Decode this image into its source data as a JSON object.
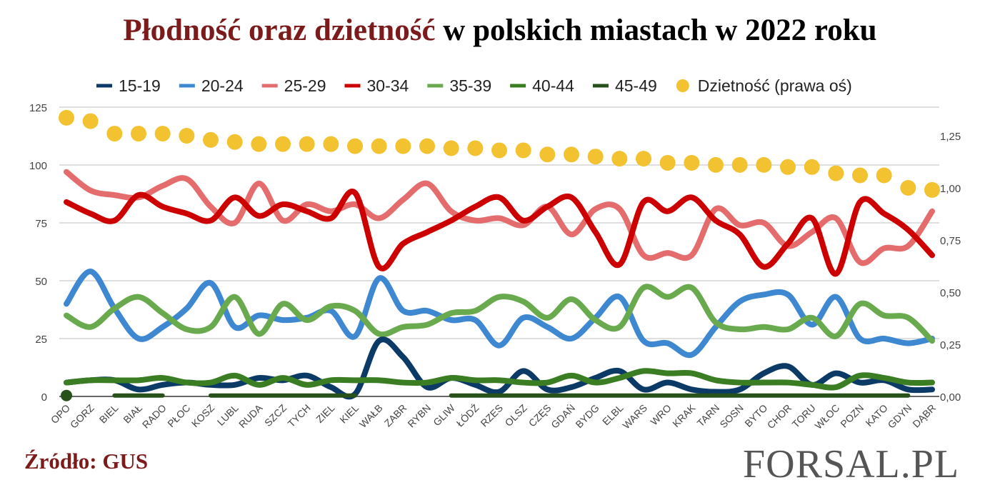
{
  "title": {
    "highlight": "Płodność oraz dzietność",
    "rest": " w polskich miastach w 2022 roku"
  },
  "source": "Źródło: GUS",
  "logo": "FORSAL.PL",
  "chart_data": {
    "type": "line",
    "categories": [
      "OPO",
      "GORZ",
      "BIEL",
      "BIAŁ",
      "RADO",
      "PŁOC",
      "KOSZ",
      "LUBL",
      "RUDA",
      "SZCZ",
      "TYCH",
      "ZIEL",
      "KIEL",
      "WAŁB",
      "ZABR",
      "RYBN",
      "GLIW",
      "ŁÓDŹ",
      "RZES",
      "OLSZ",
      "CZĘS",
      "GDAŃ",
      "BYDG",
      "ELBL",
      "WARS",
      "WRO",
      "KRAK",
      "TARN",
      "SOSN",
      "BYTO",
      "CHOR",
      "TORU",
      "WŁOC",
      "POZN",
      "KATO",
      "GDYN",
      "DĄBR"
    ],
    "left_axis": {
      "range": [
        0,
        125
      ],
      "ticks": [
        "0",
        "25",
        "50",
        "75",
        "100",
        "125"
      ]
    },
    "right_axis": {
      "range": [
        0,
        1.387
      ],
      "ticks": [
        "0,00",
        "0,25",
        "0,50",
        "0,75",
        "1,00",
        "1,25"
      ],
      "tick_values": [
        0,
        0.25,
        0.5,
        0.75,
        1,
        1.25
      ]
    },
    "grid": true,
    "legend": "top",
    "series": [
      {
        "name": "15-19",
        "color": "#0b3a66",
        "values": [
          6,
          7,
          7,
          3,
          5,
          6,
          5,
          5,
          8,
          7,
          9,
          4,
          1,
          24,
          17,
          4,
          8,
          5,
          2,
          11,
          3,
          4,
          8,
          11,
          3,
          6,
          3,
          2,
          3,
          10,
          13,
          5,
          10,
          6,
          7,
          3,
          3
        ]
      },
      {
        "name": "20-24",
        "color": "#3d88d0",
        "values": [
          40,
          54,
          38,
          25,
          30,
          38,
          49,
          30,
          35,
          33,
          34,
          37,
          26,
          51,
          37,
          37,
          33,
          33,
          22,
          34,
          30,
          25,
          34,
          43,
          24,
          23,
          18,
          30,
          41,
          44,
          44,
          31,
          43,
          25,
          25,
          23,
          25
        ]
      },
      {
        "name": "25-29",
        "color": "#e46c6c",
        "values": [
          97,
          89,
          87,
          86,
          91,
          94,
          82,
          75,
          92,
          76,
          83,
          80,
          83,
          77,
          85,
          92,
          80,
          76,
          77,
          74,
          82,
          70,
          81,
          81,
          61,
          62,
          61,
          81,
          74,
          75,
          65,
          71,
          77,
          58,
          64,
          65,
          80
        ]
      },
      {
        "name": "30-34",
        "color": "#cc0000",
        "values": [
          84,
          79,
          76,
          87,
          82,
          79,
          76,
          86,
          78,
          83,
          80,
          77,
          88,
          56,
          66,
          71,
          76,
          82,
          86,
          76,
          82,
          86,
          71,
          57,
          84,
          80,
          86,
          76,
          70,
          56,
          66,
          77,
          53,
          84,
          79,
          72,
          61
        ]
      },
      {
        "name": "35-39",
        "color": "#6aaa4f",
        "values": [
          35,
          30,
          38,
          43,
          36,
          29,
          30,
          43,
          27,
          40,
          33,
          39,
          37,
          27,
          30,
          31,
          36,
          37,
          43,
          41,
          34,
          42,
          33,
          30,
          47,
          43,
          47,
          32,
          29,
          30,
          29,
          34,
          26,
          40,
          35,
          34,
          24
        ]
      },
      {
        "name": "40-44",
        "color": "#3a7d22",
        "values": [
          6,
          7,
          7,
          7,
          8,
          6,
          6,
          9,
          5,
          8,
          5,
          7,
          7,
          7,
          6,
          6,
          8,
          7,
          7,
          6,
          6,
          9,
          6,
          8,
          11,
          10,
          10,
          7,
          6,
          6,
          6,
          5,
          4,
          9,
          8,
          6,
          6
        ]
      },
      {
        "name": "45-49",
        "color": "#27501a",
        "values": [
          0.4,
          null,
          0.4,
          0.4,
          0.4,
          null,
          0.4,
          0.4,
          0.4,
          0.4,
          0.4,
          0.4,
          0.4,
          null,
          null,
          null,
          0.4,
          0.4,
          0.4,
          0.4,
          0.4,
          0.4,
          0.4,
          0.4,
          0.4,
          0.4,
          0.4,
          0.4,
          0.4,
          0.4,
          0.4,
          0.4,
          0.4,
          0.4,
          0.4,
          0.4,
          null
        ]
      },
      {
        "name": "Dzietność (prawa oś)",
        "color": "#f2c230",
        "axis": "right",
        "type": "scatter",
        "values": [
          1.336,
          1.32,
          1.26,
          1.26,
          1.26,
          1.25,
          1.23,
          1.22,
          1.21,
          1.21,
          1.21,
          1.21,
          1.2,
          1.2,
          1.2,
          1.2,
          1.19,
          1.19,
          1.18,
          1.18,
          1.16,
          1.16,
          1.15,
          1.14,
          1.14,
          1.12,
          1.12,
          1.11,
          1.11,
          1.11,
          1.1,
          1.1,
          1.07,
          1.06,
          1.06,
          1.0,
          0.99
        ]
      }
    ]
  }
}
